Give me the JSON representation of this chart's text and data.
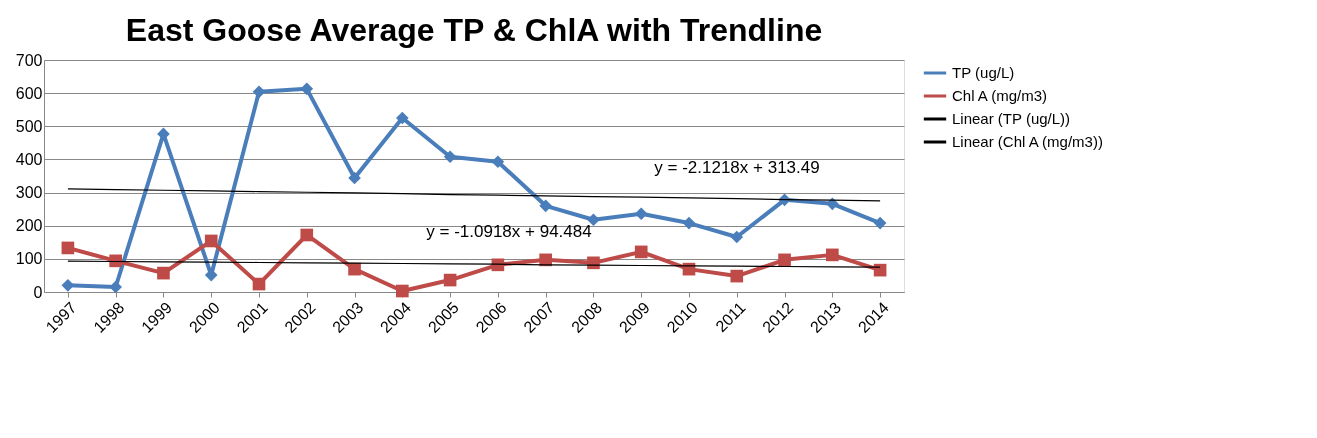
{
  "chart_data": {
    "type": "line",
    "title": "East Goose Average TP & ChlA with Trendline",
    "categories": [
      "1997",
      "1998",
      "1999",
      "2000",
      "2001",
      "2002",
      "2003",
      "2004",
      "2005",
      "2006",
      "2007",
      "2008",
      "2009",
      "2010",
      "2011",
      "2012",
      "2013",
      "2014"
    ],
    "series": [
      {
        "name": "TP (ug/L)",
        "color": "#4a7ebb",
        "marker": "diamond",
        "values": [
          20,
          15,
          477,
          51,
          604,
          613,
          344,
          525,
          408,
          393,
          260,
          218,
          236,
          208,
          166,
          278,
          266,
          208
        ]
      },
      {
        "name": "Chl A (mg/m3)",
        "color": "#be4b48",
        "marker": "square",
        "values": [
          133,
          94,
          57,
          154,
          24,
          172,
          69,
          3,
          36,
          82,
          97,
          88,
          121,
          69,
          48,
          97,
          112,
          66
        ]
      },
      {
        "name": "Linear (TP (ug/L))",
        "color": "#000000",
        "marker": "none",
        "values": [
          311,
          309,
          307,
          305,
          303,
          301,
          299,
          297,
          294,
          292,
          290,
          288,
          286,
          284,
          282,
          279,
          277,
          275
        ]
      },
      {
        "name": "Linear (Chl A (mg/m3))",
        "color": "#000000",
        "marker": "none",
        "values": [
          93,
          92,
          91,
          90,
          89,
          88,
          87,
          86,
          85,
          84,
          82,
          81,
          80,
          79,
          78,
          77,
          76,
          75
        ]
      }
    ],
    "annotations": [
      "y = -2.1218x + 313.49",
      "y = -1.0918x + 94.484"
    ],
    "ylim": [
      0,
      700
    ],
    "yticks": [
      0,
      100,
      200,
      300,
      400,
      500,
      600,
      700
    ],
    "grid": "y",
    "legend": "right"
  }
}
